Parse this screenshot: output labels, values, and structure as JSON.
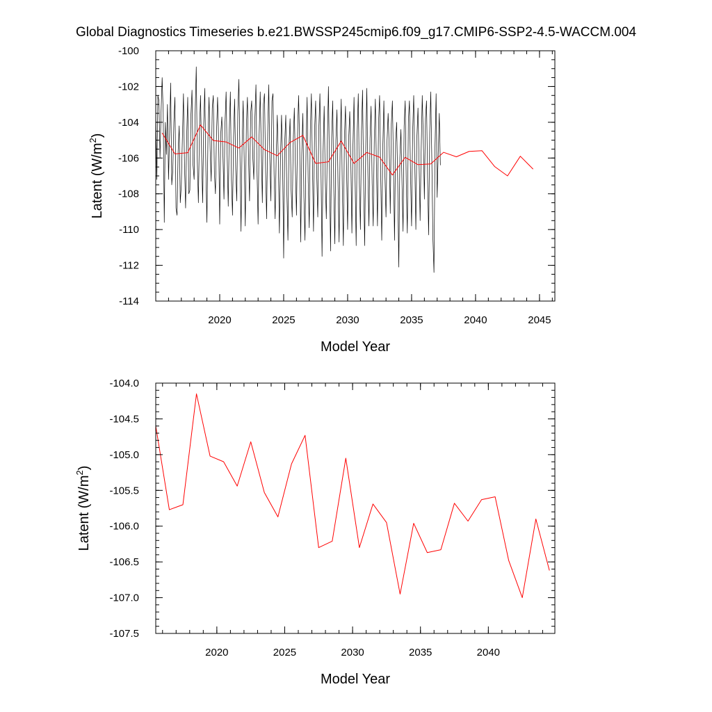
{
  "page": {
    "title": "Global Diagnostics Timeseries b.e21.BWSSP245cmip6.f09_g17.CMIP6-SSP2-4.5-WACCM.004"
  },
  "colors": {
    "monthly": "#000000",
    "annual": "#ff0000",
    "frame": "#000000"
  },
  "chart_data": [
    {
      "type": "line",
      "title": "",
      "xlabel": "Model Year",
      "ylabel": "Latent (W/m²)",
      "ylabel_text": "Latent (W/m",
      "ylabel_sup": "2",
      "ylabel_close": ")",
      "xlim": [
        2015.0,
        2046.2
      ],
      "ylim": [
        -114,
        -100
      ],
      "x_ticks": [
        2020,
        2025,
        2030,
        2035,
        2040,
        2045
      ],
      "y_ticks": [
        -114,
        -112,
        -110,
        -108,
        -106,
        -104,
        -102,
        -100
      ],
      "y_tick_labels": [
        "-114",
        "-112",
        "-110",
        "-108",
        "-106",
        "-104",
        "-102",
        "-100"
      ],
      "grid": false,
      "series": [
        {
          "kind": "monthly",
          "x_start": 2015.0,
          "x_step": 0.0833333,
          "values": [
            -103.4,
            -107.2,
            -102.5,
            -102.8,
            -106.0,
            -103.4,
            -101.5,
            -103.5,
            -109.6,
            -104.0,
            -105.8,
            -103.0,
            -107.2,
            -104.6,
            -101.8,
            -107.5,
            -106.7,
            -104.0,
            -102.6,
            -108.8,
            -109.2,
            -105.6,
            -104.2,
            -108.5,
            -107.5,
            -104.8,
            -102.4,
            -106.5,
            -108.8,
            -104.8,
            -102.6,
            -108.0,
            -107.8,
            -103.6,
            -102.2,
            -106.4,
            -107.2,
            -103.4,
            -100.9,
            -106.2,
            -108.5,
            -104.5,
            -102.5,
            -105.8,
            -108.5,
            -104.1,
            -102.1,
            -106.6,
            -109.6,
            -104.8,
            -102.6,
            -105.5,
            -107.3,
            -103.2,
            -102.5,
            -106.8,
            -108.0,
            -104.6,
            -102.6,
            -104.9,
            -109.7,
            -104.6,
            -103.7,
            -105.8,
            -108.3,
            -104.0,
            -102.3,
            -105.9,
            -108.7,
            -104.4,
            -102.3,
            -107.2,
            -109.2,
            -104.8,
            -102.7,
            -106.6,
            -108.4,
            -103.4,
            -101.6,
            -105.9,
            -110.1,
            -105.2,
            -102.8,
            -106.2,
            -109.8,
            -104.2,
            -102.6,
            -105.9,
            -108.4,
            -103.5,
            -102.8,
            -105.9,
            -107.2,
            -103.8,
            -101.9,
            -106.7,
            -109.7,
            -104.7,
            -102.3,
            -105.6,
            -108.5,
            -103.0,
            -102.4,
            -106.5,
            -109.4,
            -104.7,
            -101.9,
            -106.0,
            -108.4,
            -102.8,
            -102.4,
            -106.9,
            -109.4,
            -105.9,
            -103.6,
            -106.1,
            -110.2,
            -106.0,
            -103.6,
            -106.3,
            -111.6,
            -105.1,
            -103.6,
            -107.9,
            -110.6,
            -105.3,
            -103.8,
            -107.8,
            -109.3,
            -105.0,
            -103.2,
            -106.5,
            -109.2,
            -104.7,
            -102.5,
            -105.2,
            -110.7,
            -105.7,
            -103.5,
            -108.2,
            -110.6,
            -105.4,
            -102.6,
            -107.3,
            -109.9,
            -104.4,
            -102.4,
            -106.5,
            -110.1,
            -104.4,
            -102.8,
            -106.9,
            -109.3,
            -104.3,
            -102.4,
            -106.6,
            -111.5,
            -105.6,
            -103.1,
            -107.2,
            -109.4,
            -105.0,
            -102.0,
            -106.8,
            -111.2,
            -104.9,
            -102.8,
            -107.6,
            -110.8,
            -105.0,
            -103.3,
            -107.5,
            -110.7,
            -105.3,
            -102.7,
            -107.7,
            -110.9,
            -104.8,
            -103.1,
            -106.7,
            -110.0,
            -104.9,
            -103.4,
            -106.2,
            -110.2,
            -105.3,
            -102.6,
            -107.2,
            -110.9,
            -104.5,
            -102.4,
            -107.4,
            -110.0,
            -104.5,
            -102.2,
            -107.4,
            -110.9,
            -105.4,
            -102.1,
            -106.8,
            -109.8,
            -104.9,
            -103.1,
            -107.4,
            -109.8,
            -105.0,
            -102.7,
            -106.4,
            -109.8,
            -104.0,
            -102.5,
            -106.8,
            -110.6,
            -105.4,
            -102.8,
            -107.0,
            -109.3,
            -105.0,
            -103.5,
            -105.4,
            -109.1,
            -104.1,
            -102.8,
            -106.4,
            -110.6,
            -105.1,
            -104.0,
            -107.5,
            -112.1,
            -106.0,
            -104.4,
            -107.4,
            -110.1,
            -104.2,
            -102.8,
            -107.4,
            -110.2,
            -103.9,
            -102.8,
            -107.0,
            -109.8,
            -104.5,
            -102.5,
            -106.3,
            -110.0,
            -104.8,
            -103.2,
            -106.2,
            -109.5,
            -105.5,
            -102.5,
            -104.9,
            -108.3,
            -103.8,
            -102.8,
            -107.1,
            -110.3,
            -104.6,
            -102.3,
            -106.2,
            -110.5,
            -112.4,
            -105.3,
            -102.4,
            -108.2,
            -105.7,
            -103.5,
            -106.4
          ]
        },
        {
          "kind": "annual",
          "x": [
            2015.5,
            2016.5,
            2017.5,
            2018.5,
            2019.5,
            2020.5,
            2021.5,
            2022.5,
            2023.5,
            2024.5,
            2025.5,
            2026.5,
            2027.5,
            2028.5,
            2029.5,
            2030.5,
            2031.5,
            2032.5,
            2033.5,
            2034.5,
            2035.5,
            2036.5,
            2037.5,
            2038.5,
            2039.5,
            2040.5,
            2041.5,
            2042.5,
            2043.5,
            2044.5
          ],
          "values": [
            -104.6,
            -105.77,
            -105.7,
            -104.15,
            -105.02,
            -105.1,
            -105.44,
            -104.82,
            -105.53,
            -105.87,
            -105.13,
            -104.73,
            -106.3,
            -106.21,
            -105.05,
            -106.3,
            -105.69,
            -105.95,
            -106.95,
            -105.96,
            -106.37,
            -106.33,
            -105.68,
            -105.93,
            -105.63,
            -105.59,
            -106.48,
            -107.0,
            -105.9,
            -106.62
          ]
        }
      ]
    },
    {
      "type": "line",
      "title": "",
      "xlabel": "Model Year",
      "ylabel": "Latent (W/m²)",
      "ylabel_text": "Latent (W/m",
      "ylabel_sup": "2",
      "ylabel_close": ")",
      "xlim": [
        2015.5,
        2044.9
      ],
      "ylim": [
        -107.5,
        -104.0
      ],
      "x_ticks": [
        2020,
        2025,
        2030,
        2035,
        2040
      ],
      "y_ticks": [
        -107.5,
        -107.0,
        -106.5,
        -106.0,
        -105.5,
        -105.0,
        -104.5,
        -104.0
      ],
      "y_tick_labels": [
        "-107.5",
        "-107.0",
        "-106.5",
        "-106.0",
        "-105.5",
        "-105.0",
        "-104.5",
        "-104.0"
      ],
      "grid": false,
      "series": [
        {
          "kind": "annual",
          "x": [
            2015.5,
            2016.5,
            2017.5,
            2018.5,
            2019.5,
            2020.5,
            2021.5,
            2022.5,
            2023.5,
            2024.5,
            2025.5,
            2026.5,
            2027.5,
            2028.5,
            2029.5,
            2030.5,
            2031.5,
            2032.5,
            2033.5,
            2034.5,
            2035.5,
            2036.5,
            2037.5,
            2038.5,
            2039.5,
            2040.5,
            2041.5,
            2042.5,
            2043.5,
            2044.5
          ],
          "values": [
            -104.6,
            -105.77,
            -105.7,
            -104.15,
            -105.02,
            -105.1,
            -105.44,
            -104.82,
            -105.53,
            -105.87,
            -105.13,
            -104.73,
            -106.3,
            -106.21,
            -105.05,
            -106.3,
            -105.69,
            -105.95,
            -106.95,
            -105.96,
            -106.37,
            -106.33,
            -105.68,
            -105.93,
            -105.63,
            -105.59,
            -106.48,
            -107.0,
            -105.9,
            -106.62
          ]
        }
      ]
    }
  ]
}
